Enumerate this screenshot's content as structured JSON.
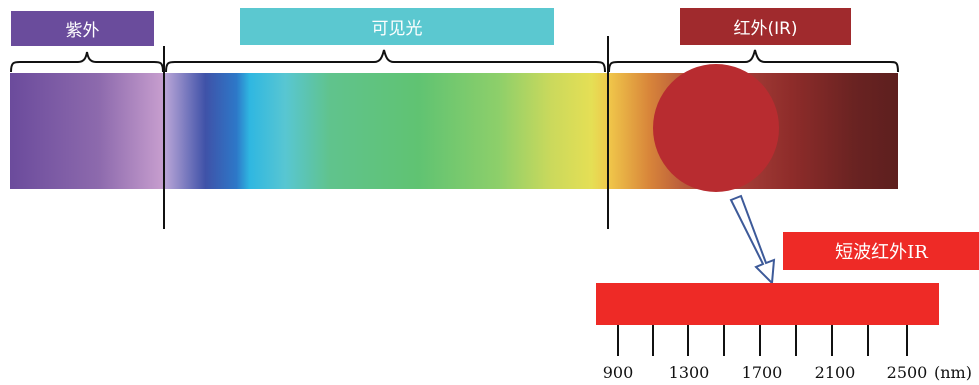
{
  "labels": {
    "uv": "紫外",
    "visible": "可见光",
    "ir": "红外(IR)",
    "swir": "短波红外IR"
  },
  "axis": {
    "tick_labels": [
      "900",
      "1300",
      "1700",
      "2100",
      "2500"
    ],
    "unit": "(nm)"
  },
  "colors": {
    "uv": "#6a4c9c",
    "visible": "#5bc8d0",
    "ir": "#a02a2d",
    "swir": "#ee2a26",
    "ir_circle": "#b82c30"
  }
}
